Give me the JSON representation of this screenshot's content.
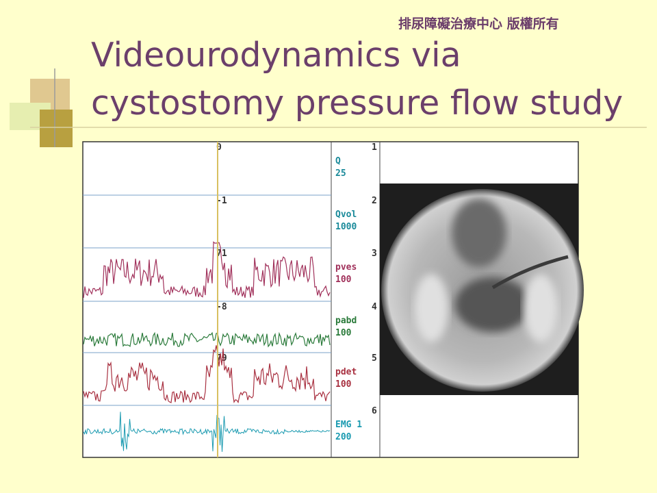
{
  "header": {
    "copyright": "排尿障礙治療中心 版權所有"
  },
  "title": {
    "lines": [
      "Videourodynamics via",
      "cystostomy pressure flow study"
    ]
  },
  "tracing": {
    "channels": [
      {
        "number": 1,
        "name": "Q",
        "scale": 25,
        "cursor": 0
      },
      {
        "number": 2,
        "name": "Qvol",
        "scale": 1000,
        "cursor": -1
      },
      {
        "number": 3,
        "name": "pves",
        "scale": 100,
        "cursor": 71
      },
      {
        "number": 4,
        "name": "pabd",
        "scale": 100,
        "cursor": -8
      },
      {
        "number": 5,
        "name": "pdet",
        "scale": 100,
        "cursor": 79
      },
      {
        "number": 6,
        "name": "EMG 1",
        "scale": 200
      }
    ]
  }
}
